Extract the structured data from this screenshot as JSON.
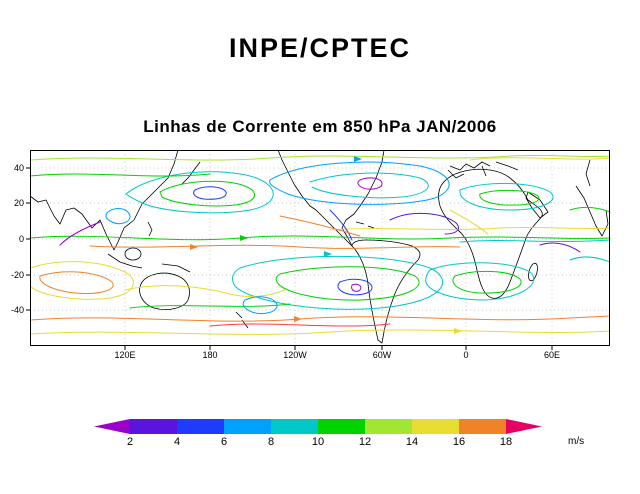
{
  "header": {
    "title": "INPE/CPTEC"
  },
  "chart_data": {
    "type": "streamline-map",
    "title": "Linhas de Corrente em 850 hPa JAN/2006",
    "variable": "Linhas de Corrente",
    "level": "850 hPa",
    "period": "JAN/2006",
    "grid": true,
    "projection": "latlon",
    "ytick_labels": [
      "40",
      "20",
      "0",
      "-20",
      "-40"
    ],
    "xtick_labels": [
      "120E",
      "180",
      "120W",
      "60W",
      "0",
      "60E"
    ],
    "colorbar": {
      "unit": "m/s",
      "orientation": "horizontal",
      "tick_labels": [
        "2",
        "4",
        "6",
        "8",
        "10",
        "12",
        "14",
        "16",
        "18"
      ],
      "colors": [
        "#9a00c8",
        "#5a14dc",
        "#1e3cff",
        "#00a0ff",
        "#00c8c8",
        "#00d200",
        "#a0e632",
        "#e6dc32",
        "#f08228",
        "#e60064"
      ]
    }
  }
}
